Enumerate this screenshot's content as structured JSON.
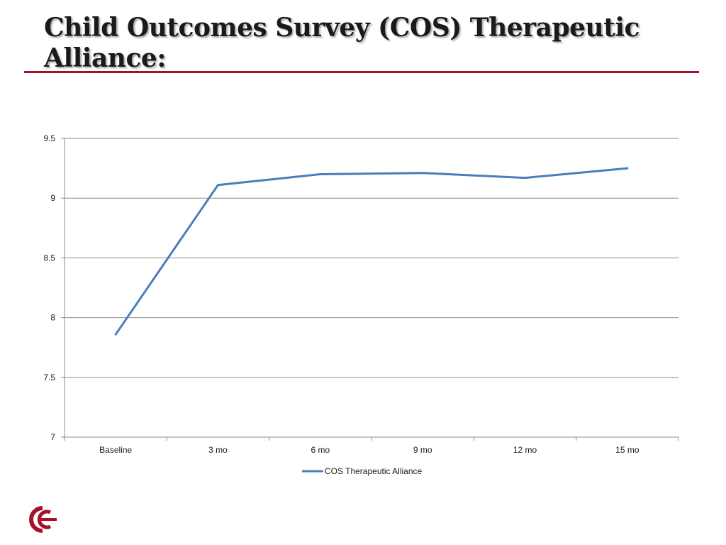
{
  "slide": {
    "title": "Child Outcomes Survey (COS) Therapeutic Alliance:",
    "accent_color": "#a3112e",
    "logo_icon": "double-c-logo-icon"
  },
  "chart_data": {
    "type": "line",
    "title": "",
    "xlabel": "",
    "ylabel": "",
    "categories": [
      "Baseline",
      "3 mo",
      "6 mo",
      "9 mo",
      "12 mo",
      "15 mo"
    ],
    "series": [
      {
        "name": "COS Therapeutic Alliance",
        "values": [
          7.86,
          9.11,
          9.2,
          9.21,
          9.17,
          9.25
        ],
        "color": "#4a7ebb"
      }
    ],
    "ylim": [
      7,
      9.5
    ],
    "yticks": [
      "7",
      "7.5",
      "8",
      "8.5",
      "9",
      "9.5"
    ],
    "grid": true,
    "legend": "bottom"
  }
}
